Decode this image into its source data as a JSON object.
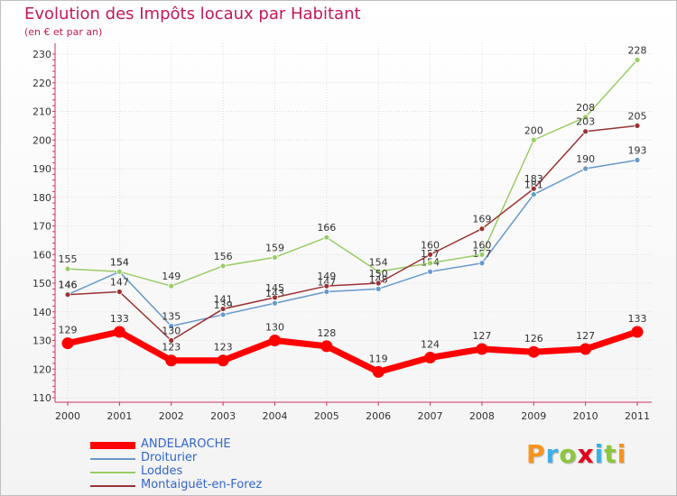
{
  "title": "Evolution des Impôts locaux par Habitant",
  "subtitle": "(en € et par an)",
  "logo_text": "Proxiti",
  "logo_colors": [
    "#f7941d",
    "#3cb0e6",
    "#8cc63f",
    "#e2001a",
    "#3cb0e6",
    "#8cc63f",
    "#f7941d"
  ],
  "chart_data": {
    "type": "line",
    "x": [
      "2000",
      "2001",
      "2002",
      "2003",
      "2004",
      "2005",
      "2006",
      "2007",
      "2008",
      "2009",
      "2010",
      "2011"
    ],
    "ylim": [
      110,
      230
    ],
    "yticks": [
      110,
      120,
      130,
      140,
      150,
      160,
      170,
      180,
      190,
      200,
      210,
      220,
      230
    ],
    "grid": true,
    "legend_position": "bottom-left",
    "series": [
      {
        "name": "ANDELAROCHE",
        "color": "#ff0000",
        "emphasis": true,
        "values": [
          129,
          133,
          123,
          123,
          130,
          128,
          119,
          124,
          127,
          126,
          127,
          133
        ]
      },
      {
        "name": "Droiturier",
        "color": "#6699cc",
        "emphasis": false,
        "values": [
          146,
          154,
          135,
          139,
          143,
          147,
          148,
          154,
          157,
          181,
          190,
          193
        ]
      },
      {
        "name": "Loddes",
        "color": "#99cc66",
        "emphasis": false,
        "values": [
          155,
          154,
          149,
          156,
          159,
          166,
          154,
          157,
          160,
          200,
          208,
          228
        ]
      },
      {
        "name": "Montaiguët-en-Forez",
        "color": "#993333",
        "emphasis": false,
        "values": [
          146,
          147,
          130,
          141,
          145,
          149,
          150,
          160,
          169,
          183,
          203,
          205
        ]
      }
    ]
  }
}
